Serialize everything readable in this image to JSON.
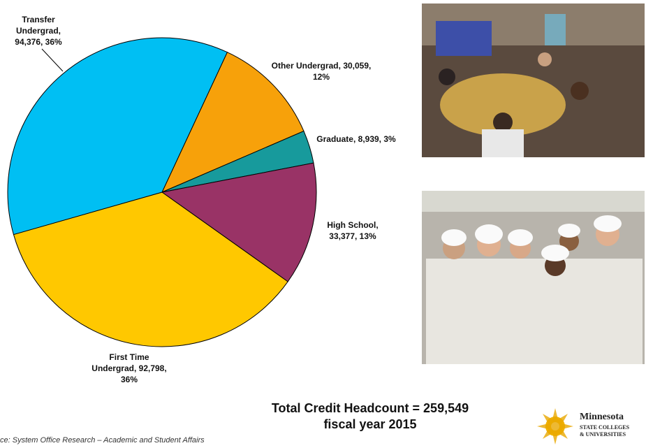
{
  "chart_data": {
    "type": "pie",
    "categories": [
      "Other Undergrad,",
      "Graduate,",
      "High School,",
      "First Time Undergrad,",
      "Transfer Undergrad,"
    ],
    "values": [
      30059,
      8939,
      33377,
      92798,
      94376
    ],
    "value_labels": [
      "30,059, 12%",
      "8,939, 3%",
      "33,377, 13%",
      "92,798, 36%",
      "94,376, 36%"
    ],
    "colors": [
      "#f7a10a",
      "#179a9c",
      "#993366",
      "#ffc800",
      "#00bff3"
    ]
  },
  "total": {
    "line1": "Total Credit Headcount = 259,549",
    "line2": "fiscal year 2015"
  },
  "source": "ce: System Office Research – Academic and Student Affairs",
  "logo": {
    "name": "Minnesota",
    "line2": "STATE COLLEGES",
    "line3": "& UNIVERSITIES"
  }
}
